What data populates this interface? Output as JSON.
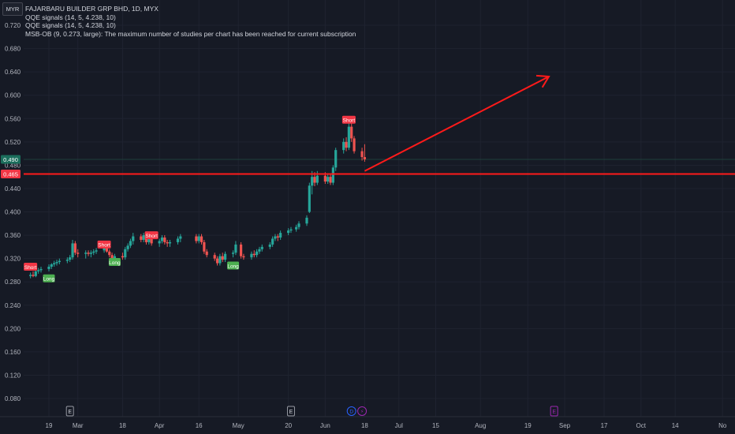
{
  "header": {
    "currency": "MYR",
    "legend": [
      "FAJARBARU BUILDER GRP BHD, 1D, MYX",
      "QQE signals (14, 5, 4.238, 10)",
      "QQE signals (14, 5, 4.238, 10)",
      "MSB-OB (9, 0.273, large): The maximum number of studies per chart has been reached for current subscription"
    ]
  },
  "colors": {
    "background": "#161a25",
    "grid": "#1f2330",
    "up": "#26a69a",
    "down": "#ef5350",
    "red_line": "#ff1a1a",
    "short_badge": "#f23645",
    "long_badge": "#4caf50",
    "last_price_badge": "#1b6e5c",
    "dividend_badge": "#2962ff",
    "split_badge": "#9c27b0",
    "earnings_future": "#9c27b0"
  },
  "chart_data": {
    "type": "candlestick",
    "y_axis": {
      "min": 0.06,
      "max": 0.74,
      "ticks": [
        "0.720",
        "0.680",
        "0.640",
        "0.600",
        "0.560",
        "0.520",
        "0.480",
        "0.440",
        "0.400",
        "0.360",
        "0.320",
        "0.280",
        "0.240",
        "0.200",
        "0.160",
        "0.120",
        "0.080"
      ]
    },
    "x_axis": {
      "labels": [
        {
          "text": "19",
          "date": "2024-02-19"
        },
        {
          "text": "Mar",
          "date": "2024-03-01"
        },
        {
          "text": "18",
          "date": "2024-03-18"
        },
        {
          "text": "Apr",
          "date": "2024-04-01"
        },
        {
          "text": "16",
          "date": "2024-04-16"
        },
        {
          "text": "May",
          "date": "2024-05-01"
        },
        {
          "text": "20",
          "date": "2024-05-20"
        },
        {
          "text": "Jun",
          "date": "2024-06-03"
        },
        {
          "text": "18",
          "date": "2024-06-18"
        },
        {
          "text": "Jul",
          "date": "2024-07-01"
        },
        {
          "text": "15",
          "date": "2024-07-15"
        },
        {
          "text": "Aug",
          "date": "2024-08-01"
        },
        {
          "text": "19",
          "date": "2024-08-19"
        },
        {
          "text": "Sep",
          "date": "2024-09-02"
        },
        {
          "text": "17",
          "date": "2024-09-17"
        },
        {
          "text": "Oct",
          "date": "2024-10-01"
        },
        {
          "text": "14",
          "date": "2024-10-14"
        },
        {
          "text": "No",
          "date": "2024-11-01"
        }
      ]
    },
    "candles": [
      {
        "date": "2024-02-12",
        "o": 0.29,
        "h": 0.296,
        "l": 0.286,
        "c": 0.292
      },
      {
        "date": "2024-02-13",
        "o": 0.292,
        "h": 0.298,
        "l": 0.288,
        "c": 0.29
      },
      {
        "date": "2024-02-14",
        "o": 0.29,
        "h": 0.3,
        "l": 0.288,
        "c": 0.298
      },
      {
        "date": "2024-02-15",
        "o": 0.298,
        "h": 0.304,
        "l": 0.294,
        "c": 0.3
      },
      {
        "date": "2024-02-16",
        "o": 0.3,
        "h": 0.306,
        "l": 0.296,
        "c": 0.302
      },
      {
        "date": "2024-02-19",
        "o": 0.302,
        "h": 0.31,
        "l": 0.298,
        "c": 0.306
      },
      {
        "date": "2024-02-20",
        "o": 0.306,
        "h": 0.312,
        "l": 0.302,
        "c": 0.31
      },
      {
        "date": "2024-02-21",
        "o": 0.31,
        "h": 0.316,
        "l": 0.306,
        "c": 0.312
      },
      {
        "date": "2024-02-22",
        "o": 0.312,
        "h": 0.318,
        "l": 0.308,
        "c": 0.314
      },
      {
        "date": "2024-02-23",
        "o": 0.314,
        "h": 0.32,
        "l": 0.31,
        "c": 0.316
      },
      {
        "date": "2024-02-26",
        "o": 0.316,
        "h": 0.322,
        "l": 0.312,
        "c": 0.318
      },
      {
        "date": "2024-02-27",
        "o": 0.318,
        "h": 0.326,
        "l": 0.314,
        "c": 0.322
      },
      {
        "date": "2024-02-28",
        "o": 0.322,
        "h": 0.352,
        "l": 0.318,
        "c": 0.346
      },
      {
        "date": "2024-02-29",
        "o": 0.346,
        "h": 0.35,
        "l": 0.326,
        "c": 0.33
      },
      {
        "date": "2024-03-01",
        "o": 0.33,
        "h": 0.336,
        "l": 0.322,
        "c": 0.328
      },
      {
        "date": "2024-03-04",
        "o": 0.328,
        "h": 0.334,
        "l": 0.32,
        "c": 0.33
      },
      {
        "date": "2024-03-05",
        "o": 0.33,
        "h": 0.334,
        "l": 0.324,
        "c": 0.328
      },
      {
        "date": "2024-03-06",
        "o": 0.328,
        "h": 0.334,
        "l": 0.322,
        "c": 0.33
      },
      {
        "date": "2024-03-07",
        "o": 0.33,
        "h": 0.336,
        "l": 0.326,
        "c": 0.332
      },
      {
        "date": "2024-03-08",
        "o": 0.332,
        "h": 0.338,
        "l": 0.328,
        "c": 0.334
      },
      {
        "date": "2024-03-11",
        "o": 0.334,
        "h": 0.344,
        "l": 0.33,
        "c": 0.34
      },
      {
        "date": "2024-03-12",
        "o": 0.34,
        "h": 0.342,
        "l": 0.33,
        "c": 0.332
      },
      {
        "date": "2024-03-13",
        "o": 0.332,
        "h": 0.336,
        "l": 0.322,
        "c": 0.326
      },
      {
        "date": "2024-03-14",
        "o": 0.326,
        "h": 0.33,
        "l": 0.316,
        "c": 0.32
      },
      {
        "date": "2024-03-15",
        "o": 0.32,
        "h": 0.328,
        "l": 0.316,
        "c": 0.324
      },
      {
        "date": "2024-03-18",
        "o": 0.324,
        "h": 0.33,
        "l": 0.318,
        "c": 0.322
      },
      {
        "date": "2024-03-19",
        "o": 0.322,
        "h": 0.34,
        "l": 0.318,
        "c": 0.336
      },
      {
        "date": "2024-03-20",
        "o": 0.336,
        "h": 0.346,
        "l": 0.332,
        "c": 0.342
      },
      {
        "date": "2024-03-21",
        "o": 0.342,
        "h": 0.354,
        "l": 0.338,
        "c": 0.35
      },
      {
        "date": "2024-03-22",
        "o": 0.35,
        "h": 0.364,
        "l": 0.344,
        "c": 0.358
      },
      {
        "date": "2024-03-25",
        "o": 0.358,
        "h": 0.362,
        "l": 0.348,
        "c": 0.352
      },
      {
        "date": "2024-03-26",
        "o": 0.352,
        "h": 0.364,
        "l": 0.348,
        "c": 0.36
      },
      {
        "date": "2024-03-27",
        "o": 0.36,
        "h": 0.364,
        "l": 0.344,
        "c": 0.348
      },
      {
        "date": "2024-03-28",
        "o": 0.348,
        "h": 0.362,
        "l": 0.344,
        "c": 0.358
      },
      {
        "date": "2024-03-29",
        "o": 0.358,
        "h": 0.362,
        "l": 0.342,
        "c": 0.346
      },
      {
        "date": "2024-04-01",
        "o": 0.346,
        "h": 0.354,
        "l": 0.34,
        "c": 0.35
      },
      {
        "date": "2024-04-02",
        "o": 0.35,
        "h": 0.36,
        "l": 0.346,
        "c": 0.356
      },
      {
        "date": "2024-04-03",
        "o": 0.356,
        "h": 0.36,
        "l": 0.344,
        "c": 0.348
      },
      {
        "date": "2024-04-04",
        "o": 0.348,
        "h": 0.352,
        "l": 0.34,
        "c": 0.346
      },
      {
        "date": "2024-04-05",
        "o": 0.346,
        "h": 0.352,
        "l": 0.34,
        "c": 0.348
      },
      {
        "date": "2024-04-08",
        "o": 0.348,
        "h": 0.358,
        "l": 0.344,
        "c": 0.354
      },
      {
        "date": "2024-04-09",
        "o": 0.354,
        "h": 0.362,
        "l": 0.348,
        "c": 0.358
      },
      {
        "date": "2024-04-15",
        "o": 0.358,
        "h": 0.362,
        "l": 0.346,
        "c": 0.35
      },
      {
        "date": "2024-04-16",
        "o": 0.35,
        "h": 0.362,
        "l": 0.346,
        "c": 0.358
      },
      {
        "date": "2024-04-17",
        "o": 0.358,
        "h": 0.362,
        "l": 0.344,
        "c": 0.348
      },
      {
        "date": "2024-04-18",
        "o": 0.348,
        "h": 0.352,
        "l": 0.328,
        "c": 0.332
      },
      {
        "date": "2024-04-19",
        "o": 0.332,
        "h": 0.336,
        "l": 0.322,
        "c": 0.326
      },
      {
        "date": "2024-04-22",
        "o": 0.326,
        "h": 0.33,
        "l": 0.316,
        "c": 0.32
      },
      {
        "date": "2024-04-23",
        "o": 0.32,
        "h": 0.324,
        "l": 0.308,
        "c": 0.312
      },
      {
        "date": "2024-04-24",
        "o": 0.312,
        "h": 0.328,
        "l": 0.308,
        "c": 0.324
      },
      {
        "date": "2024-04-25",
        "o": 0.324,
        "h": 0.33,
        "l": 0.314,
        "c": 0.318
      },
      {
        "date": "2024-04-26",
        "o": 0.318,
        "h": 0.332,
        "l": 0.314,
        "c": 0.328
      },
      {
        "date": "2024-04-29",
        "o": 0.328,
        "h": 0.334,
        "l": 0.322,
        "c": 0.33
      },
      {
        "date": "2024-04-30",
        "o": 0.33,
        "h": 0.35,
        "l": 0.326,
        "c": 0.344
      },
      {
        "date": "2024-05-02",
        "o": 0.344,
        "h": 0.348,
        "l": 0.32,
        "c": 0.324
      },
      {
        "date": "2024-05-03",
        "o": 0.324,
        "h": 0.328,
        "l": 0.318,
        "c": 0.322
      },
      {
        "date": "2024-05-06",
        "o": 0.322,
        "h": 0.332,
        "l": 0.318,
        "c": 0.328
      },
      {
        "date": "2024-05-07",
        "o": 0.328,
        "h": 0.334,
        "l": 0.322,
        "c": 0.326
      },
      {
        "date": "2024-05-08",
        "o": 0.326,
        "h": 0.336,
        "l": 0.322,
        "c": 0.332
      },
      {
        "date": "2024-05-09",
        "o": 0.332,
        "h": 0.34,
        "l": 0.328,
        "c": 0.336
      },
      {
        "date": "2024-05-10",
        "o": 0.336,
        "h": 0.344,
        "l": 0.332,
        "c": 0.34
      },
      {
        "date": "2024-05-13",
        "o": 0.34,
        "h": 0.348,
        "l": 0.336,
        "c": 0.344
      },
      {
        "date": "2024-05-14",
        "o": 0.344,
        "h": 0.358,
        "l": 0.34,
        "c": 0.354
      },
      {
        "date": "2024-05-15",
        "o": 0.354,
        "h": 0.362,
        "l": 0.35,
        "c": 0.358
      },
      {
        "date": "2024-05-16",
        "o": 0.358,
        "h": 0.362,
        "l": 0.35,
        "c": 0.356
      },
      {
        "date": "2024-05-17",
        "o": 0.356,
        "h": 0.368,
        "l": 0.352,
        "c": 0.364
      },
      {
        "date": "2024-05-20",
        "o": 0.364,
        "h": 0.372,
        "l": 0.36,
        "c": 0.368
      },
      {
        "date": "2024-05-21",
        "o": 0.368,
        "h": 0.374,
        "l": 0.364,
        "c": 0.37
      },
      {
        "date": "2024-05-23",
        "o": 0.37,
        "h": 0.378,
        "l": 0.366,
        "c": 0.374
      },
      {
        "date": "2024-05-24",
        "o": 0.374,
        "h": 0.384,
        "l": 0.37,
        "c": 0.38
      },
      {
        "date": "2024-05-27",
        "o": 0.38,
        "h": 0.394,
        "l": 0.376,
        "c": 0.39
      },
      {
        "date": "2024-05-28",
        "o": 0.4,
        "h": 0.45,
        "l": 0.398,
        "c": 0.445
      },
      {
        "date": "2024-05-29",
        "o": 0.445,
        "h": 0.47,
        "l": 0.43,
        "c": 0.46
      },
      {
        "date": "2024-05-30",
        "o": 0.46,
        "h": 0.468,
        "l": 0.444,
        "c": 0.45
      },
      {
        "date": "2024-05-31",
        "o": 0.45,
        "h": 0.47,
        "l": 0.446,
        "c": 0.462
      },
      {
        "date": "2024-06-03",
        "o": 0.462,
        "h": 0.468,
        "l": 0.448,
        "c": 0.452
      },
      {
        "date": "2024-06-04",
        "o": 0.452,
        "h": 0.465,
        "l": 0.448,
        "c": 0.46
      },
      {
        "date": "2024-06-05",
        "o": 0.46,
        "h": 0.464,
        "l": 0.446,
        "c": 0.45
      },
      {
        "date": "2024-06-06",
        "o": 0.45,
        "h": 0.48,
        "l": 0.446,
        "c": 0.476
      },
      {
        "date": "2024-06-07",
        "o": 0.476,
        "h": 0.51,
        "l": 0.47,
        "c": 0.506
      },
      {
        "date": "2024-06-10",
        "o": 0.506,
        "h": 0.526,
        "l": 0.5,
        "c": 0.52
      },
      {
        "date": "2024-06-11",
        "o": 0.52,
        "h": 0.528,
        "l": 0.504,
        "c": 0.51
      },
      {
        "date": "2024-06-12",
        "o": 0.51,
        "h": 0.552,
        "l": 0.506,
        "c": 0.546
      },
      {
        "date": "2024-06-13",
        "o": 0.546,
        "h": 0.556,
        "l": 0.52,
        "c": 0.526
      },
      {
        "date": "2024-06-14",
        "o": 0.526,
        "h": 0.53,
        "l": 0.5,
        "c": 0.504
      },
      {
        "date": "2024-06-17",
        "o": 0.504,
        "h": 0.51,
        "l": 0.488,
        "c": 0.494
      },
      {
        "date": "2024-06-18",
        "o": 0.494,
        "h": 0.516,
        "l": 0.486,
        "c": 0.49
      }
    ],
    "horizontal_line": {
      "value": 0.465,
      "label": "0.465"
    },
    "last_price": {
      "value": 0.49,
      "label": "0.490"
    },
    "trend_arrow": {
      "from": {
        "date": "2024-06-18",
        "value": 0.47
      },
      "to": {
        "date": "2024-08-27",
        "value": 0.632
      }
    },
    "signals": [
      {
        "type": "Short",
        "date": "2024-02-12",
        "value": 0.306
      },
      {
        "type": "Long",
        "date": "2024-02-19",
        "value": 0.286
      },
      {
        "type": "Short",
        "date": "2024-03-11",
        "value": 0.344
      },
      {
        "type": "Long",
        "date": "2024-03-15",
        "value": 0.314
      },
      {
        "type": "Short",
        "date": "2024-03-29",
        "value": 0.36
      },
      {
        "type": "Long",
        "date": "2024-04-29",
        "value": 0.308
      },
      {
        "type": "Short",
        "date": "2024-06-12",
        "value": 0.558
      }
    ],
    "events": [
      {
        "kind": "earnings",
        "text": "E",
        "date": "2024-02-27"
      },
      {
        "kind": "earnings",
        "text": "E",
        "date": "2024-05-21"
      },
      {
        "kind": "dividend",
        "text": "D",
        "date": "2024-06-13"
      },
      {
        "kind": "split",
        "text": "⚡",
        "date": "2024-06-17"
      },
      {
        "kind": "earnings-future",
        "text": "E",
        "date": "2024-08-29"
      }
    ]
  }
}
